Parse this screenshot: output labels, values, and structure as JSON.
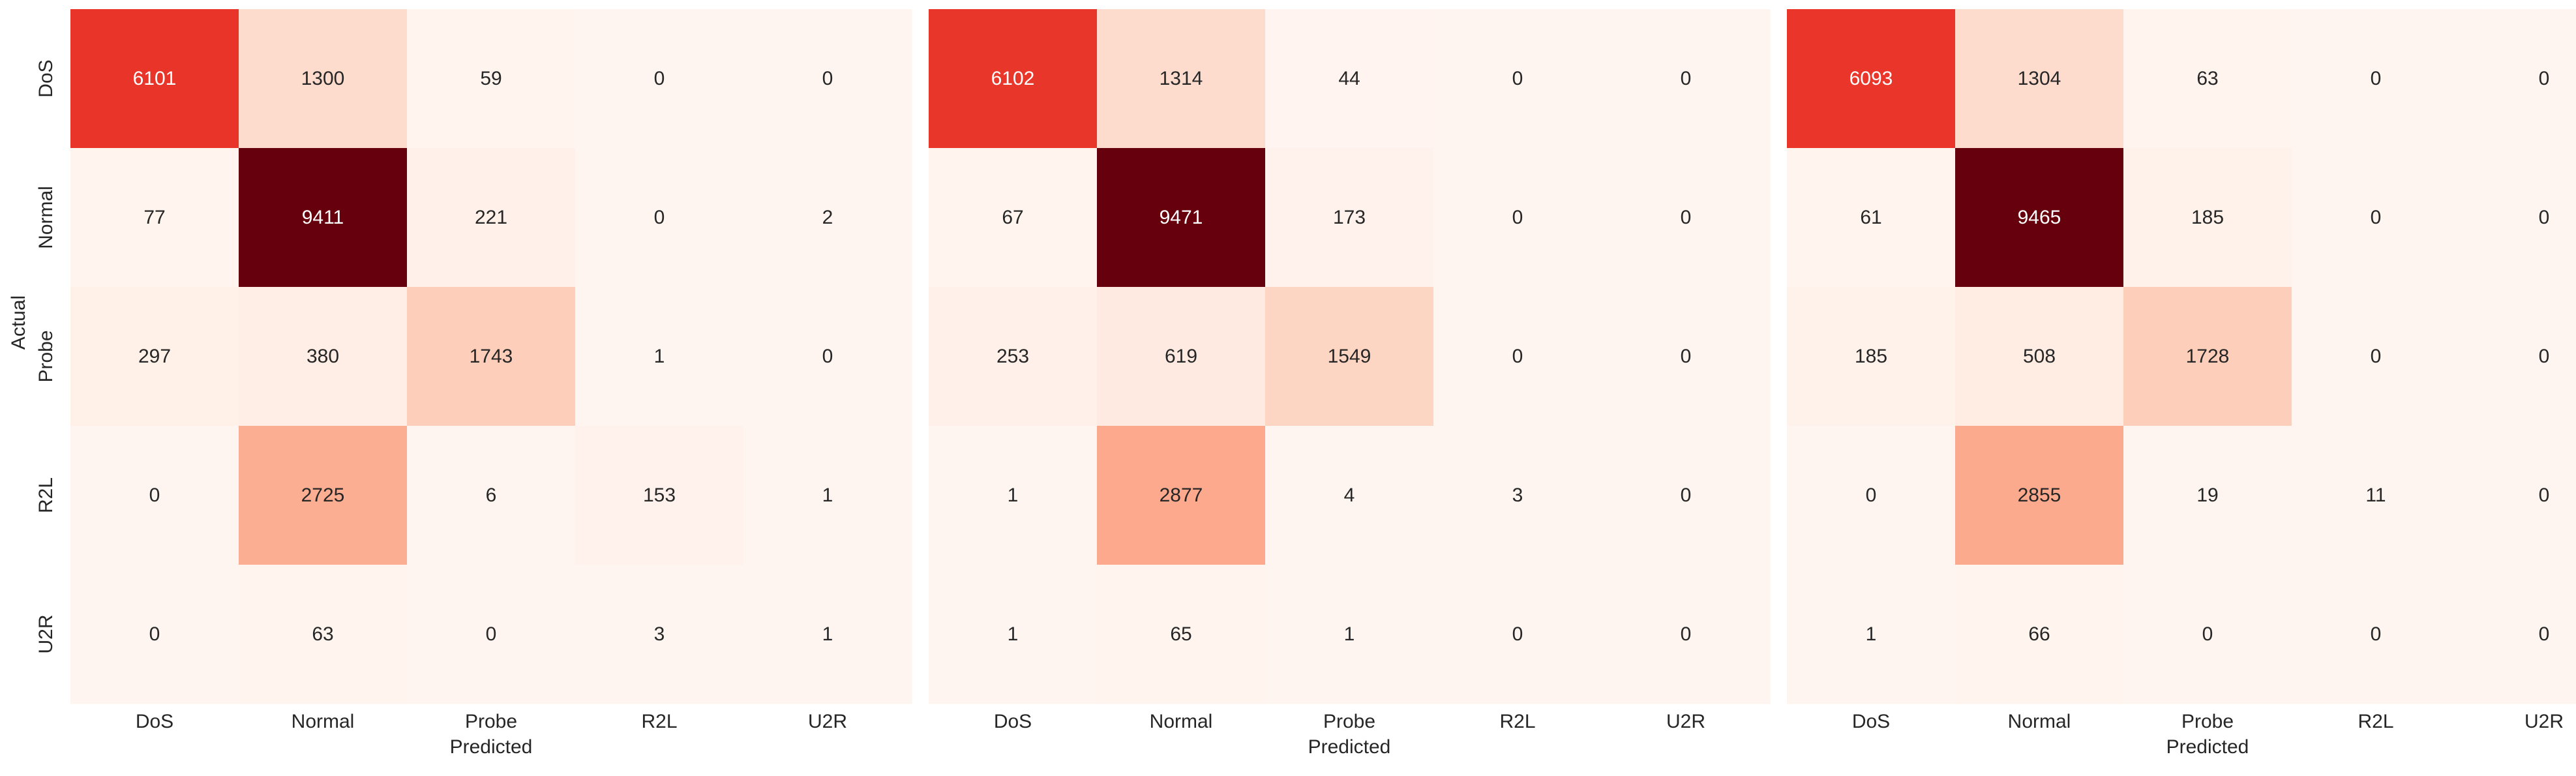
{
  "chart_data": [
    {
      "type": "heatmap",
      "title": "",
      "xlabel": "Predicted",
      "ylabel": "Actual",
      "x_categories": [
        "DoS",
        "Normal",
        "Probe",
        "R2L",
        "U2R"
      ],
      "y_categories": [
        "DoS",
        "Normal",
        "Probe",
        "R2L",
        "U2R"
      ],
      "values": [
        [
          6101,
          1300,
          59,
          0,
          0
        ],
        [
          77,
          9411,
          221,
          0,
          2
        ],
        [
          297,
          380,
          1743,
          1,
          0
        ],
        [
          0,
          2725,
          6,
          153,
          1
        ],
        [
          0,
          63,
          0,
          3,
          1
        ]
      ],
      "colormap": "Reds",
      "show_colorbar": false,
      "show_y_ticks": true,
      "show_y_label": true
    },
    {
      "type": "heatmap",
      "title": "",
      "xlabel": "Predicted",
      "ylabel": "",
      "x_categories": [
        "DoS",
        "Normal",
        "Probe",
        "R2L",
        "U2R"
      ],
      "y_categories": [
        "DoS",
        "Normal",
        "Probe",
        "R2L",
        "U2R"
      ],
      "values": [
        [
          6102,
          1314,
          44,
          0,
          0
        ],
        [
          67,
          9471,
          173,
          0,
          0
        ],
        [
          253,
          619,
          1549,
          0,
          0
        ],
        [
          1,
          2877,
          4,
          3,
          0
        ],
        [
          1,
          65,
          1,
          0,
          0
        ]
      ],
      "colormap": "Reds",
      "show_colorbar": false,
      "show_y_ticks": false,
      "show_y_label": false
    },
    {
      "type": "heatmap",
      "title": "",
      "xlabel": "Predicted",
      "ylabel": "",
      "x_categories": [
        "DoS",
        "Normal",
        "Probe",
        "R2L",
        "U2R"
      ],
      "y_categories": [
        "DoS",
        "Normal",
        "Probe",
        "R2L",
        "U2R"
      ],
      "values": [
        [
          6093,
          1304,
          63,
          0,
          0
        ],
        [
          61,
          9465,
          185,
          0,
          0
        ],
        [
          185,
          508,
          1728,
          0,
          0
        ],
        [
          0,
          2855,
          19,
          11,
          0
        ],
        [
          1,
          66,
          0,
          0,
          0
        ]
      ],
      "colormap": "Reds",
      "show_colorbar": false,
      "show_y_ticks": false,
      "show_y_label": false
    }
  ]
}
